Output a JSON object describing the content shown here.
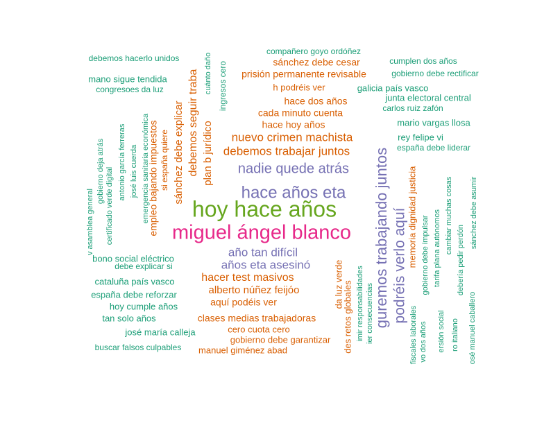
{
  "chart_data": {
    "type": "wordcloud",
    "colors": {
      "teal": "#1b9e77",
      "orange": "#d95f02",
      "purple": "#7570b3",
      "magenta": "#e7298a",
      "green": "#66a61e"
    },
    "words": [
      {
        "text": "hoy hace años",
        "color": "green",
        "weight": 10
      },
      {
        "text": "miguel ángel blanco",
        "color": "magenta",
        "weight": 9
      },
      {
        "text": "hace años eta",
        "color": "purple",
        "weight": 7
      },
      {
        "text": "guremos trabajando juntos",
        "color": "purple",
        "weight": 6
      },
      {
        "text": "podréis verlo aquí",
        "color": "purple",
        "weight": 6
      },
      {
        "text": "nadie quede atrás",
        "color": "purple",
        "weight": 5
      },
      {
        "text": "año tan difícil",
        "color": "purple",
        "weight": 5
      },
      {
        "text": "años eta asesinó",
        "color": "purple",
        "weight": 5
      },
      {
        "text": "nuevo crimen machista",
        "color": "orange",
        "weight": 4
      },
      {
        "text": "debemos trabajar juntos",
        "color": "orange",
        "weight": 4
      },
      {
        "text": "hacer test masivos",
        "color": "orange",
        "weight": 4
      },
      {
        "text": "debemos seguir traba",
        "color": "orange",
        "weight": 4
      },
      {
        "text": "sánchez debe explicar",
        "color": "orange",
        "weight": 3
      },
      {
        "text": "plan b jurídico",
        "color": "orange",
        "weight": 3
      },
      {
        "text": "empleo bajando impuestos",
        "color": "orange",
        "weight": 3
      },
      {
        "text": "alberto núñez feijóo",
        "color": "orange",
        "weight": 3
      },
      {
        "text": "aquí podéis ver",
        "color": "orange",
        "weight": 3
      },
      {
        "text": "clases medias trabajadoras",
        "color": "orange",
        "weight": 3
      },
      {
        "text": "hace dos años",
        "color": "orange",
        "weight": 3
      },
      {
        "text": "cada minuto cuenta",
        "color": "orange",
        "weight": 3
      },
      {
        "text": "hace hoy años",
        "color": "orange",
        "weight": 3
      },
      {
        "text": "prisión permanente revisable",
        "color": "orange",
        "weight": 2
      },
      {
        "text": "sánchez debe cesar",
        "color": "orange",
        "weight": 2
      },
      {
        "text": "h podréis ver",
        "color": "orange",
        "weight": 2
      },
      {
        "text": "cero cuota cero",
        "color": "orange",
        "weight": 2
      },
      {
        "text": "gobierno debe garantizar",
        "color": "orange",
        "weight": 2
      },
      {
        "text": "manuel giménez abad",
        "color": "orange",
        "weight": 2
      },
      {
        "text": "si españa quiere",
        "color": "orange",
        "weight": 2
      },
      {
        "text": "memoria dignidad justicia",
        "color": "orange",
        "weight": 2
      },
      {
        "text": "da luz verde",
        "color": "orange",
        "weight": 2
      },
      {
        "text": "des retos globales",
        "color": "orange",
        "weight": 2
      },
      {
        "text": "compañero goyo ordóñez",
        "color": "teal",
        "weight": 1
      },
      {
        "text": "debemos hacerlo unidos",
        "color": "teal",
        "weight": 1
      },
      {
        "text": "mano sigue tendida",
        "color": "teal",
        "weight": 2
      },
      {
        "text": "congresoes da luz",
        "color": "teal",
        "weight": 1
      },
      {
        "text": "galicia país vasco",
        "color": "teal",
        "weight": 2
      },
      {
        "text": "cumplen dos años",
        "color": "teal",
        "weight": 1
      },
      {
        "text": "gobierno debe rectificar",
        "color": "teal",
        "weight": 1
      },
      {
        "text": "junta electoral central",
        "color": "teal",
        "weight": 2
      },
      {
        "text": "carlos ruiz zafón",
        "color": "teal",
        "weight": 1
      },
      {
        "text": "mario vargas llosa",
        "color": "teal",
        "weight": 2
      },
      {
        "text": "rey felipe vi",
        "color": "teal",
        "weight": 2
      },
      {
        "text": "españa debe liderar",
        "color": "teal",
        "weight": 1
      },
      {
        "text": "bono social eléctrico",
        "color": "teal",
        "weight": 2
      },
      {
        "text": "debe explicar si",
        "color": "teal",
        "weight": 1
      },
      {
        "text": "cataluña país vasco",
        "color": "teal",
        "weight": 2
      },
      {
        "text": "españa debe reforzar",
        "color": "teal",
        "weight": 2
      },
      {
        "text": "hoy cumple años",
        "color": "teal",
        "weight": 2
      },
      {
        "text": "tan solo años",
        "color": "teal",
        "weight": 2
      },
      {
        "text": "josé maría calleja",
        "color": "teal",
        "weight": 2
      },
      {
        "text": "buscar falsos culpables",
        "color": "teal",
        "weight": 1
      },
      {
        "text": "cuánto daño",
        "color": "teal",
        "weight": 1
      },
      {
        "text": "ingresos cero",
        "color": "teal",
        "weight": 1
      },
      {
        "text": "v asamblea general",
        "color": "teal",
        "weight": 1
      },
      {
        "text": "gobierno deja atrás",
        "color": "teal",
        "weight": 1
      },
      {
        "text": "certificado verde digital",
        "color": "teal",
        "weight": 1
      },
      {
        "text": "antonio garcía ferreras",
        "color": "teal",
        "weight": 1
      },
      {
        "text": "josé luis cuerda",
        "color": "teal",
        "weight": 1
      },
      {
        "text": "emergencia sanitaria económica",
        "color": "teal",
        "weight": 1
      },
      {
        "text": "imir responsabilidades",
        "color": "teal",
        "weight": 1
      },
      {
        "text": "ier consecuencias",
        "color": "teal",
        "weight": 1
      },
      {
        "text": "fiscales laborales",
        "color": "teal",
        "weight": 1
      },
      {
        "text": "vo dos años",
        "color": "teal",
        "weight": 1
      },
      {
        "text": "gobierno debe impulsar",
        "color": "teal",
        "weight": 1
      },
      {
        "text": "tarifa plana autónomos",
        "color": "teal",
        "weight": 1
      },
      {
        "text": "cambiar muchas cosas",
        "color": "teal",
        "weight": 1
      },
      {
        "text": "ersión social",
        "color": "teal",
        "weight": 1
      },
      {
        "text": "ro italiano",
        "color": "teal",
        "weight": 1
      },
      {
        "text": "debería pedir perdón",
        "color": "teal",
        "weight": 1
      },
      {
        "text": "osé manuel caballero",
        "color": "teal",
        "weight": 1
      },
      {
        "text": "sánchez debe asumir",
        "color": "teal",
        "weight": 1
      }
    ]
  }
}
